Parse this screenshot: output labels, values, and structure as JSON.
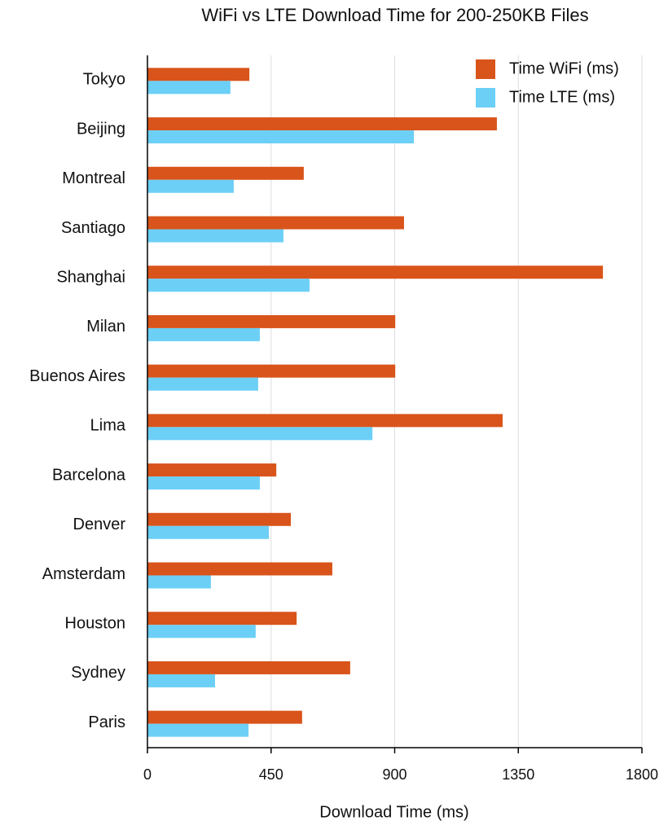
{
  "chart_data": {
    "type": "hbar",
    "title": "WiFi vs LTE Download Time for 200-250KB Files",
    "x_label": "Download Time (ms)",
    "categories": [
      "Tokyo",
      "Beijing",
      "Montreal",
      "Santiago",
      "Shanghai",
      "Milan",
      "Buenos Aires",
      "Lima",
      "Barcelona",
      "Denver",
      "Amsterdam",
      "Houston",
      "Sydney",
      "Paris"
    ],
    "series": [
      {
        "name": "Time WiFi (ms)",
        "color": "#d9541a",
        "values": [
          371,
          1272,
          569,
          934,
          1658,
          902,
          902,
          1293,
          469,
          522,
          673,
          543,
          738,
          563
        ]
      },
      {
        "name": "Time LTE (ms)",
        "color": "#6ccff6",
        "values": [
          302,
          970,
          314,
          495,
          590,
          409,
          403,
          819,
          409,
          442,
          231,
          394,
          246,
          368
        ]
      }
    ],
    "xlim": [
      0,
      1800
    ],
    "xticks": [
      0,
      450,
      900,
      1350,
      1800
    ],
    "grid": true,
    "legend": "top-right"
  }
}
